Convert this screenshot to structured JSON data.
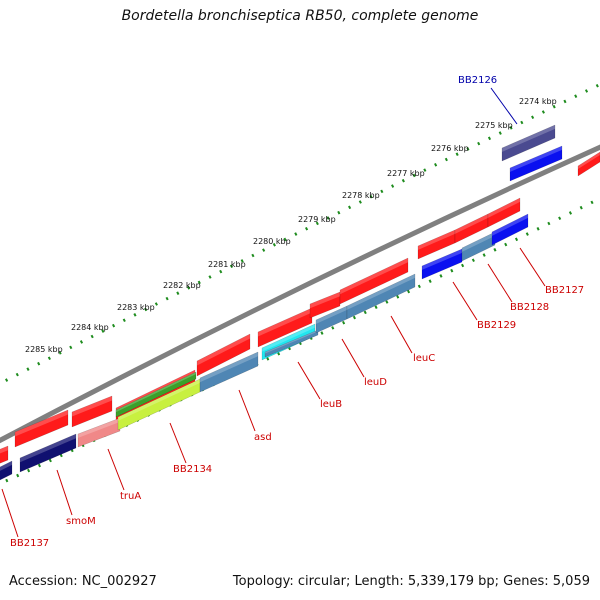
{
  "title": "Bordetella bronchiseptica RB50, complete genome",
  "accession": "Accession: NC_002927",
  "topology": "Topology: circular; Length: 5,339,179 bp; Genes: 5,059",
  "colors": {
    "backbone": "#808080",
    "tick_track": "#1e8c1e",
    "label_red": "#cc0000",
    "label_blue": "#0000aa",
    "red": "#ff1a1a",
    "blue": "#0a10f0",
    "navy": "#101070",
    "steel": "#4f86b4",
    "cyan": "#22e6f0",
    "green": "#3aa02a",
    "lime": "#c8f040",
    "pink": "#f08888",
    "purple": "#4a4a90"
  },
  "kbp_labels": [
    "2274 kbp",
    "2275 kbp",
    "2276 kbp",
    "2277 kbp",
    "2278 kbp",
    "2279 kbp",
    "2280 kbp",
    "2281 kbp",
    "2282 kbp",
    "2283 kbp",
    "2284 kbp",
    "2285 kbp"
  ],
  "gene_labels": [
    "BB2126",
    "BB2127",
    "BB2128",
    "BB2129",
    "leuC",
    "leuD",
    "leuB",
    "asd",
    "BB2134",
    "truA",
    "smoM",
    "BB2137"
  ]
}
